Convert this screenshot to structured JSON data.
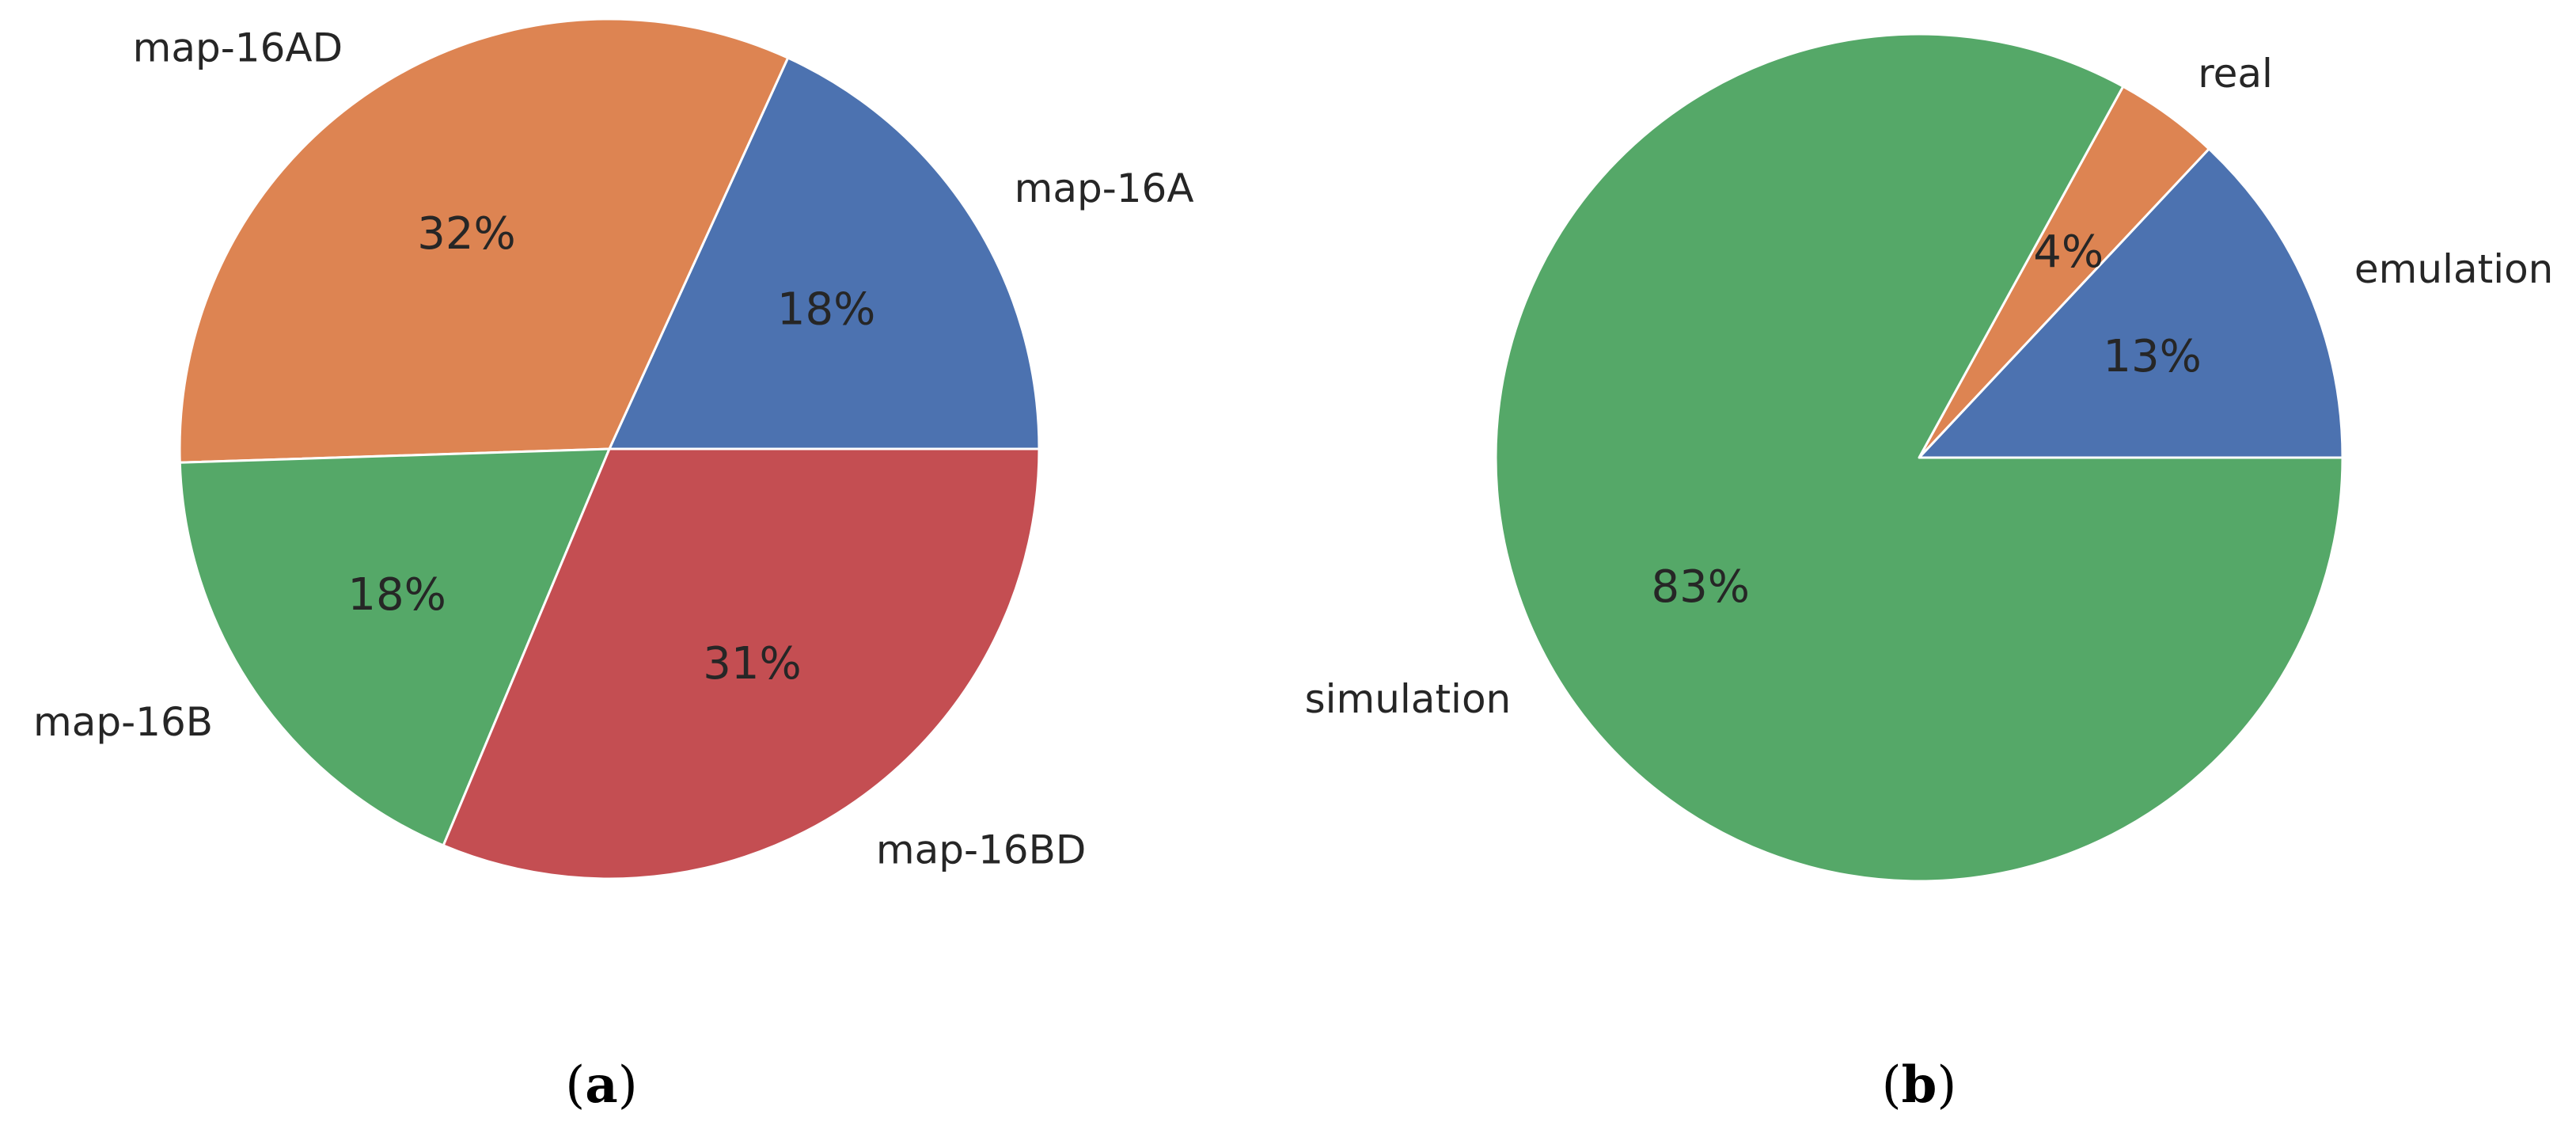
{
  "chart_data": [
    {
      "type": "pie",
      "caption_letter": "a",
      "start_angle_deg": 0,
      "direction": "counterclockwise",
      "colors": [
        "#4c72b0",
        "#dd8452",
        "#55a868",
        "#c44e52"
      ],
      "slices": [
        {
          "label": "map-16A",
          "value": 18,
          "pct_label": "18%"
        },
        {
          "label": "map-16AD",
          "value": 32,
          "pct_label": "32%"
        },
        {
          "label": "map-16B",
          "value": 18,
          "pct_label": "18%"
        },
        {
          "label": "map-16BD",
          "value": 31,
          "pct_label": "31%"
        }
      ]
    },
    {
      "type": "pie",
      "caption_letter": "b",
      "start_angle_deg": 0,
      "direction": "counterclockwise",
      "colors": [
        "#4c72b0",
        "#dd8452",
        "#55a868"
      ],
      "slices": [
        {
          "label": "emulation",
          "value": 13,
          "pct_label": "13%"
        },
        {
          "label": "real",
          "value": 4,
          "pct_label": "4%"
        },
        {
          "label": "simulation",
          "value": 83,
          "pct_label": "83%"
        }
      ]
    }
  ]
}
